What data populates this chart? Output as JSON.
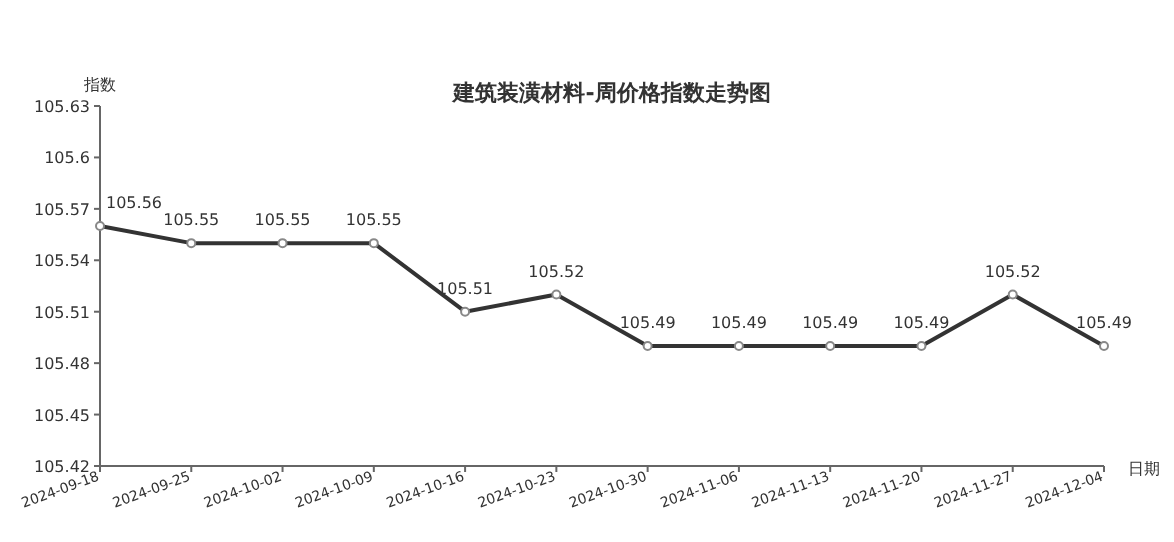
{
  "chart_data": {
    "type": "line",
    "title": "建筑装潢材料-周价格指数走势图",
    "ylabel": "指数",
    "xlabel": "日期",
    "categories": [
      "2024-09-18",
      "2024-09-25",
      "2024-10-02",
      "2024-10-09",
      "2024-10-16",
      "2024-10-23",
      "2024-10-30",
      "2024-11-06",
      "2024-11-13",
      "2024-11-20",
      "2024-11-27",
      "2024-12-04"
    ],
    "series": [
      {
        "color": "#333333",
        "values": [
          105.56,
          105.55,
          105.55,
          105.55,
          105.51,
          105.52,
          105.49,
          105.49,
          105.49,
          105.49,
          105.52,
          105.49
        ]
      }
    ],
    "ylim": [
      105.42,
      105.63
    ],
    "yticks": [
      105.42,
      105.45,
      105.48,
      105.51,
      105.54,
      105.57,
      105.6,
      105.63
    ],
    "data_labels": true,
    "marker": "circle",
    "grid": false
  }
}
